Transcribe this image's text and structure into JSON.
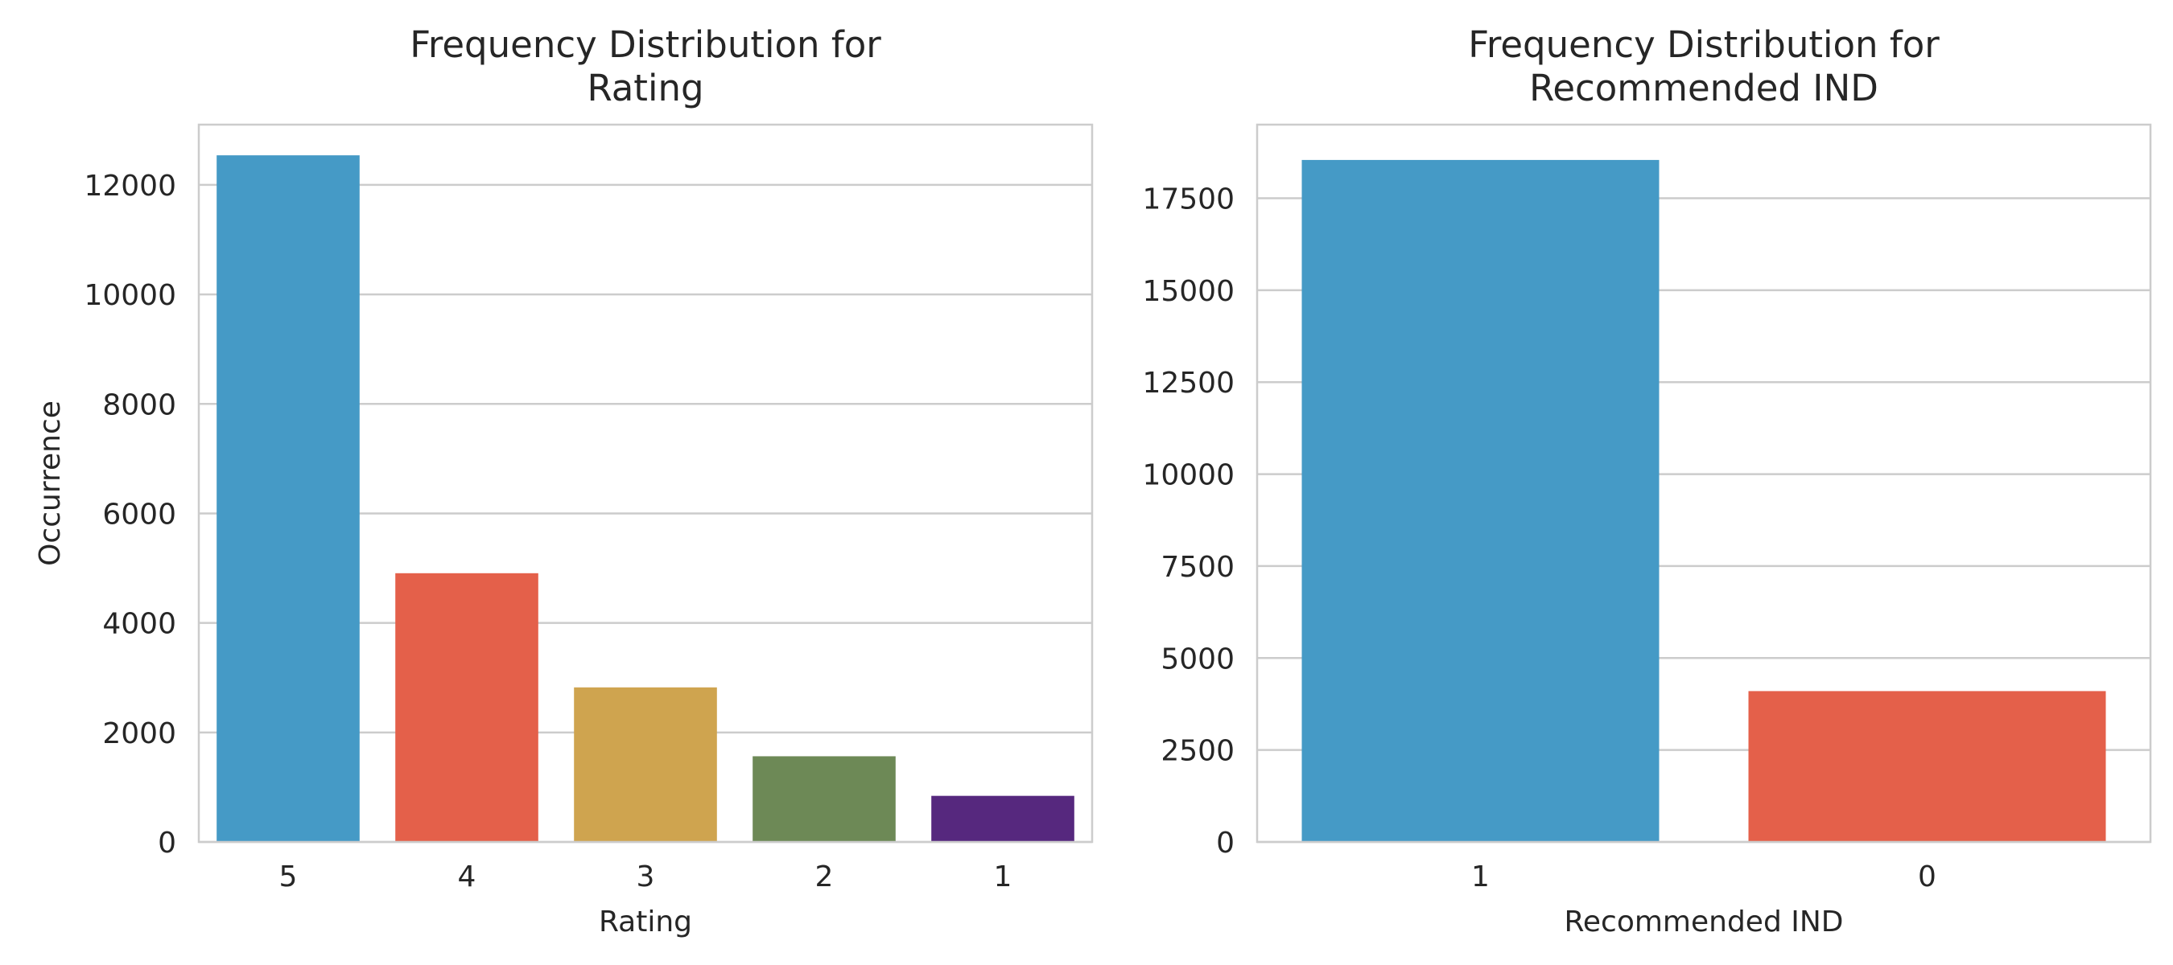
{
  "colors": {
    "bar_palette": [
      "#459ac6",
      "#e4604a",
      "#cfa44f",
      "#6d8956",
      "#56287e"
    ],
    "grid": "#cccccc",
    "text": "#262626",
    "background": "#ffffff"
  },
  "chart_data": [
    {
      "type": "bar",
      "title_lines": [
        "Frequency Distribution for",
        "Rating"
      ],
      "xlabel": "Rating",
      "ylabel": "Occurrence",
      "categories": [
        "5",
        "4",
        "3",
        "2",
        "1"
      ],
      "values": [
        12540,
        4908,
        2823,
        1565,
        842
      ],
      "ylim": [
        0,
        13100
      ],
      "yticks": [
        0,
        2000,
        4000,
        6000,
        8000,
        10000,
        12000
      ],
      "grid": true
    },
    {
      "type": "bar",
      "title_lines": [
        "Frequency Distribution for",
        "Recommended IND"
      ],
      "xlabel": "Recommended IND",
      "ylabel": "",
      "categories": [
        "1",
        "0"
      ],
      "values": [
        18540,
        4101
      ],
      "ylim": [
        0,
        19500
      ],
      "yticks": [
        0,
        2500,
        5000,
        7500,
        10000,
        12500,
        15000,
        17500
      ],
      "grid": true
    }
  ]
}
